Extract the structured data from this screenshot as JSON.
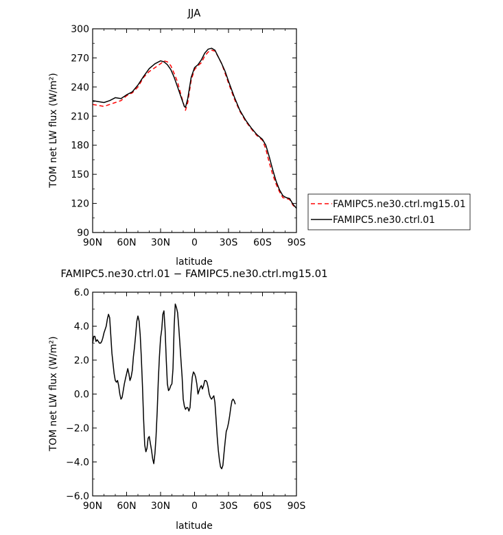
{
  "chart_data": [
    {
      "type": "line",
      "title": "JJA",
      "xlabel": "latitude",
      "ylabel": "TOM net LW flux (W/m²)",
      "xlim": [
        90,
        -90
      ],
      "ylim": [
        90,
        300
      ],
      "x_tick_labels": [
        "90N",
        "60N",
        "30N",
        "0",
        "30S",
        "60S",
        "90S"
      ],
      "x_tick_values": [
        90,
        60,
        30,
        0,
        -30,
        -60,
        -90
      ],
      "y_ticks": [
        90,
        120,
        150,
        180,
        210,
        240,
        270,
        300
      ],
      "legend_position": "right",
      "colors": {
        "ctrl_mg15": "#ff0000",
        "ctrl": "#000000"
      },
      "series": [
        {
          "name": "FAMIPC5.ne30.ctrl.mg15.01",
          "color": "#ff0000",
          "dash": true,
          "points": [
            [
              90,
              222
            ],
            [
              85,
              221
            ],
            [
              80,
              220
            ],
            [
              75,
              222
            ],
            [
              70,
              224
            ],
            [
              65,
              226
            ],
            [
              60,
              231
            ],
            [
              55,
              234
            ],
            [
              50,
              240
            ],
            [
              45,
              250
            ],
            [
              40,
              256
            ],
            [
              35,
              260
            ],
            [
              30,
              264
            ],
            [
              27,
              267
            ],
            [
              24,
              266
            ],
            [
              21,
              262
            ],
            [
              18,
              254
            ],
            [
              15,
              245
            ],
            [
              12,
              232
            ],
            [
              9,
              220
            ],
            [
              8,
              216
            ],
            [
              6,
              224
            ],
            [
              3,
              247
            ],
            [
              0,
              258
            ],
            [
              -3,
              262
            ],
            [
              -6,
              265
            ],
            [
              -9,
              272
            ],
            [
              -12,
              276
            ],
            [
              -15,
              278
            ],
            [
              -18,
              277
            ],
            [
              -21,
              271
            ],
            [
              -24,
              264
            ],
            [
              -27,
              254
            ],
            [
              -30,
              244
            ],
            [
              -35,
              228
            ],
            [
              -40,
              215
            ],
            [
              -45,
              205
            ],
            [
              -50,
              197
            ],
            [
              -55,
              190
            ],
            [
              -60,
              185
            ],
            [
              -63,
              176
            ],
            [
              -66,
              162
            ],
            [
              -69,
              150
            ],
            [
              -72,
              140
            ],
            [
              -75,
              132
            ],
            [
              -78,
              126
            ],
            [
              -81,
              125
            ],
            [
              -84,
              124
            ],
            [
              -87,
              118
            ],
            [
              -90,
              115
            ]
          ]
        },
        {
          "name": "FAMIPC5.ne30.ctrl.01",
          "color": "#000000",
          "dash": false,
          "points": [
            [
              90,
              226
            ],
            [
              85,
              225
            ],
            [
              80,
              224
            ],
            [
              75,
              226
            ],
            [
              70,
              229
            ],
            [
              65,
              228
            ],
            [
              60,
              232
            ],
            [
              55,
              235
            ],
            [
              50,
              242
            ],
            [
              45,
              251
            ],
            [
              40,
              259
            ],
            [
              35,
              264
            ],
            [
              30,
              267
            ],
            [
              27,
              266
            ],
            [
              24,
              263
            ],
            [
              21,
              258
            ],
            [
              18,
              250
            ],
            [
              15,
              240
            ],
            [
              12,
              230
            ],
            [
              9,
              220
            ],
            [
              8,
              219
            ],
            [
              6,
              228
            ],
            [
              3,
              250
            ],
            [
              0,
              260
            ],
            [
              -3,
              263
            ],
            [
              -6,
              268
            ],
            [
              -9,
              275
            ],
            [
              -12,
              279
            ],
            [
              -15,
              280
            ],
            [
              -18,
              278
            ],
            [
              -21,
              271
            ],
            [
              -24,
              264
            ],
            [
              -27,
              256
            ],
            [
              -30,
              246
            ],
            [
              -35,
              230
            ],
            [
              -40,
              216
            ],
            [
              -45,
              206
            ],
            [
              -50,
              198
            ],
            [
              -55,
              191
            ],
            [
              -60,
              186
            ],
            [
              -63,
              180
            ],
            [
              -66,
              168
            ],
            [
              -69,
              155
            ],
            [
              -72,
              143
            ],
            [
              -75,
              134
            ],
            [
              -78,
              128
            ],
            [
              -81,
              126
            ],
            [
              -84,
              125
            ],
            [
              -87,
              119
            ],
            [
              -90,
              115
            ]
          ]
        }
      ]
    },
    {
      "type": "line",
      "title": "FAMIPC5.ne30.ctrl.01 − FAMIPC5.ne30.ctrl.mg15.01",
      "xlabel": "latitude",
      "ylabel": "TOM net LW flux (W/m²)",
      "xlim": [
        90,
        -90
      ],
      "ylim": [
        -6,
        6
      ],
      "x_tick_labels": [
        "90N",
        "60N",
        "30N",
        "0",
        "30S",
        "60S",
        "90S"
      ],
      "x_tick_values": [
        90,
        60,
        30,
        0,
        -30,
        -60,
        -90
      ],
      "y_ticks": [
        -6,
        -4,
        -2,
        0,
        2,
        4,
        6
      ],
      "y_tick_labels": [
        "−6.0",
        "−4.0",
        "−2.0",
        "0.0",
        "2.0",
        "4.0",
        "6.0"
      ],
      "series": [
        {
          "color": "#000000",
          "dash": false,
          "points": [
            [
              90,
              3.0
            ],
            [
              89,
              3.4
            ],
            [
              88,
              3.4
            ],
            [
              87,
              3.1
            ],
            [
              86,
              3.2
            ],
            [
              85,
              3.1
            ],
            [
              84,
              3.0
            ],
            [
              83,
              3.0
            ],
            [
              82,
              3.1
            ],
            [
              81,
              3.3
            ],
            [
              80,
              3.6
            ],
            [
              79,
              3.8
            ],
            [
              78,
              4.0
            ],
            [
              77,
              4.4
            ],
            [
              76,
              4.7
            ],
            [
              75,
              4.5
            ],
            [
              74,
              3.5
            ],
            [
              73,
              2.4
            ],
            [
              72,
              1.8
            ],
            [
              71,
              1.2
            ],
            [
              70,
              0.8
            ],
            [
              69,
              0.7
            ],
            [
              68,
              0.8
            ],
            [
              67,
              0.5
            ],
            [
              66,
              0.0
            ],
            [
              65,
              -0.3
            ],
            [
              64,
              -0.2
            ],
            [
              63,
              0.2
            ],
            [
              62,
              0.6
            ],
            [
              61,
              0.9
            ],
            [
              60,
              1.2
            ],
            [
              59,
              1.5
            ],
            [
              58,
              1.2
            ],
            [
              57,
              0.8
            ],
            [
              56,
              1.0
            ],
            [
              55,
              1.4
            ],
            [
              54,
              2.2
            ],
            [
              53,
              2.8
            ],
            [
              52,
              3.5
            ],
            [
              51,
              4.3
            ],
            [
              50,
              4.6
            ],
            [
              49,
              4.3
            ],
            [
              48,
              3.5
            ],
            [
              47,
              2.2
            ],
            [
              46,
              0.5
            ],
            [
              45,
              -1.5
            ],
            [
              44,
              -3.0
            ],
            [
              43,
              -3.4
            ],
            [
              42,
              -3.2
            ],
            [
              41,
              -2.6
            ],
            [
              40,
              -2.5
            ],
            [
              39,
              -2.9
            ],
            [
              38,
              -3.3
            ],
            [
              37,
              -3.8
            ],
            [
              36,
              -4.1
            ],
            [
              35,
              -3.5
            ],
            [
              34,
              -2.5
            ],
            [
              33,
              -1.0
            ],
            [
              32,
              0.8
            ],
            [
              31,
              2.2
            ],
            [
              30,
              3.3
            ],
            [
              29,
              3.8
            ],
            [
              28,
              4.7
            ],
            [
              27,
              4.9
            ],
            [
              26,
              3.8
            ],
            [
              25,
              2.0
            ],
            [
              24,
              0.6
            ],
            [
              23,
              0.2
            ],
            [
              22,
              0.3
            ],
            [
              21,
              0.5
            ],
            [
              20,
              0.6
            ],
            [
              19,
              1.5
            ],
            [
              18,
              4.0
            ],
            [
              17,
              5.3
            ],
            [
              16,
              5.1
            ],
            [
              15,
              4.8
            ],
            [
              14,
              4.0
            ],
            [
              13,
              3.0
            ],
            [
              12,
              2.0
            ],
            [
              11,
              1.0
            ],
            [
              10,
              -0.3
            ],
            [
              9,
              -0.7
            ],
            [
              8,
              -0.9
            ],
            [
              7,
              -0.8
            ],
            [
              6,
              -0.8
            ],
            [
              5,
              -1.0
            ],
            [
              4,
              -0.8
            ],
            [
              3,
              0.2
            ],
            [
              2,
              1.0
            ],
            [
              1,
              1.3
            ],
            [
              0,
              1.2
            ],
            [
              -1,
              1.0
            ],
            [
              -2,
              0.6
            ],
            [
              -3,
              0.0
            ],
            [
              -4,
              0.2
            ],
            [
              -5,
              0.4
            ],
            [
              -6,
              0.5
            ],
            [
              -7,
              0.3
            ],
            [
              -8,
              0.5
            ],
            [
              -9,
              0.8
            ],
            [
              -10,
              0.8
            ],
            [
              -11,
              0.7
            ],
            [
              -12,
              0.4
            ],
            [
              -13,
              0.0
            ],
            [
              -14,
              -0.2
            ],
            [
              -15,
              -0.3
            ],
            [
              -16,
              -0.2
            ],
            [
              -17,
              -0.1
            ],
            [
              -18,
              -0.5
            ],
            [
              -19,
              -1.5
            ],
            [
              -20,
              -2.5
            ],
            [
              -21,
              -3.3
            ],
            [
              -22,
              -3.9
            ],
            [
              -23,
              -4.3
            ],
            [
              -24,
              -4.4
            ],
            [
              -25,
              -4.2
            ],
            [
              -26,
              -3.5
            ],
            [
              -27,
              -2.8
            ],
            [
              -28,
              -2.2
            ],
            [
              -29,
              -2.0
            ],
            [
              -30,
              -1.7
            ],
            [
              -31,
              -1.3
            ],
            [
              -32,
              -0.8
            ],
            [
              -33,
              -0.4
            ],
            [
              -34,
              -0.3
            ],
            [
              -35,
              -0.4
            ],
            [
              -36,
              -0.6
            ]
          ]
        }
      ]
    }
  ]
}
